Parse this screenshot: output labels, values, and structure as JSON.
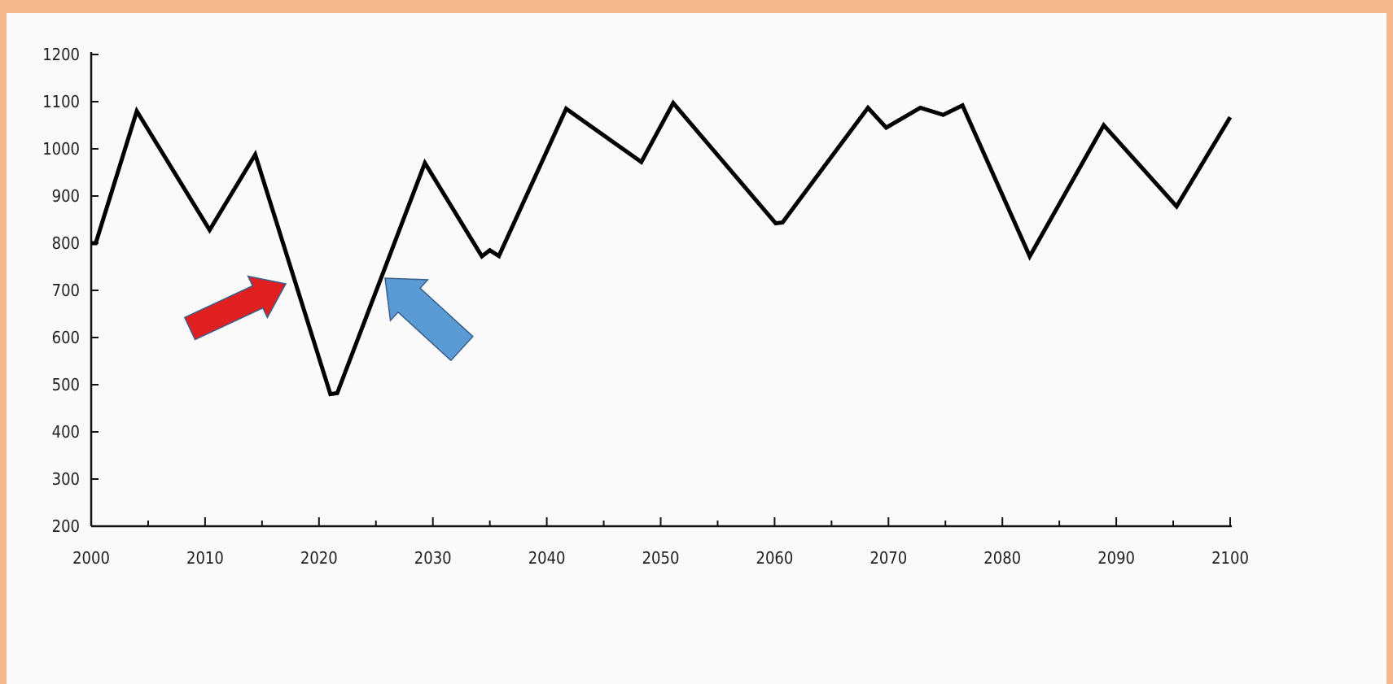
{
  "chart_data": {
    "type": "line",
    "title": "",
    "xlabel": "",
    "ylabel": "",
    "xlim": [
      2000,
      2100
    ],
    "ylim": [
      200,
      1200
    ],
    "x_ticks": [
      "2000",
      "2010",
      "2020",
      "2030",
      "2040",
      "2050",
      "2060",
      "2070",
      "2080",
      "2090",
      "2100"
    ],
    "y_ticks": [
      "200",
      "300",
      "400",
      "500",
      "600",
      "700",
      "800",
      "900",
      "1000",
      "1100",
      "1200"
    ],
    "grid": false,
    "legend": "none",
    "line_color": "#000000",
    "series": [
      {
        "x": [
          2000,
          2000.4,
          2004,
          2010.4,
          2014.4,
          2021,
          2021.6,
          2029.3,
          2034.3,
          2035,
          2035.8,
          2041.7,
          2048.3,
          2051.1,
          2060.1,
          2060.7,
          2068.2,
          2069.8,
          2072.8,
          2074.8,
          2076.5,
          2082.4,
          2088.9,
          2095.3,
          2100
        ],
        "y": [
          800,
          800,
          1080,
          828,
          988,
          480,
          482,
          970,
          772,
          785,
          773,
          1085,
          972,
          1097,
          842,
          844,
          1087,
          1045,
          1087,
          1072,
          1092,
          772,
          1050,
          878,
          1067
        ]
      }
    ],
    "annotations": [
      {
        "name": "red-arrow",
        "color": "#e02020",
        "points_to": {
          "x": 2018,
          "y": 700
        }
      },
      {
        "name": "blue-arrow",
        "color": "#5b9bd5",
        "points_to": {
          "x": 2025.8,
          "y": 730
        }
      }
    ]
  }
}
